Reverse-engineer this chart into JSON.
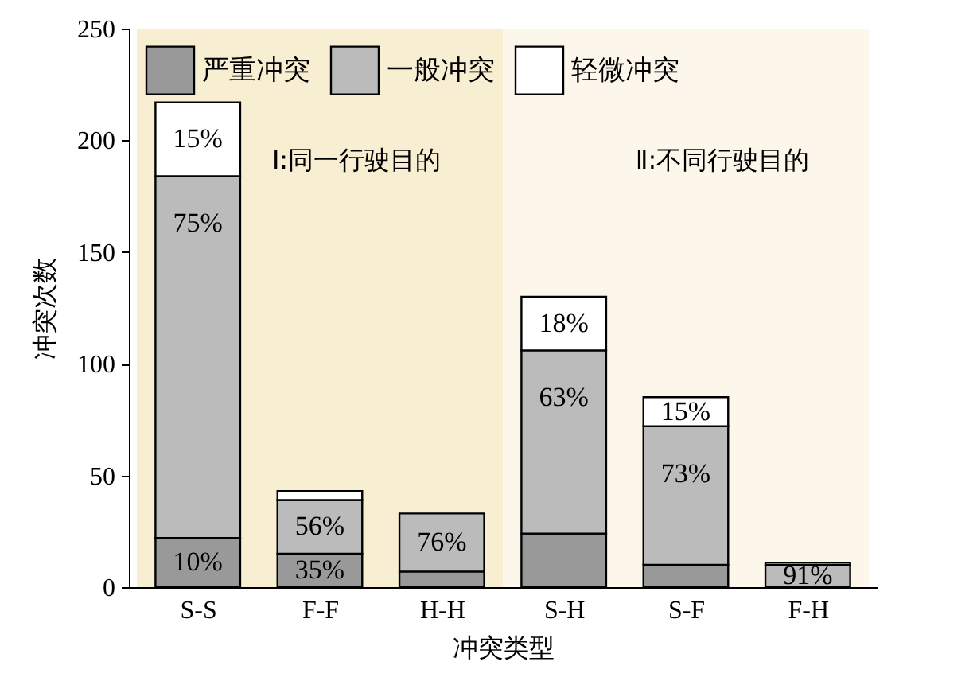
{
  "chart_data": {
    "type": "bar",
    "stacked": true,
    "xlabel": "冲突类型",
    "ylabel": "冲突次数",
    "categories": [
      "S-S",
      "F-F",
      "H-H",
      "S-H",
      "S-F",
      "F-H"
    ],
    "series": [
      {
        "name": "严重冲突",
        "color": "#999999",
        "values": [
          22,
          15,
          7,
          24,
          10,
          0
        ]
      },
      {
        "name": "一般冲突",
        "color": "#bbbbbb",
        "values": [
          162,
          24,
          26,
          82,
          62,
          10
        ]
      },
      {
        "name": "轻微冲突",
        "color": "#ffffff",
        "values": [
          33,
          4,
          null,
          24,
          13,
          1
        ]
      }
    ],
    "annotations": [
      {
        "text": "10%",
        "x": "S-S",
        "y": 22
      },
      {
        "text": "75%",
        "x": "S-S",
        "y": 184
      },
      {
        "text": "15%",
        "x": "S-S",
        "y": 217
      },
      {
        "text": "35%",
        "x": "F-F",
        "y": 15
      },
      {
        "text": "56%",
        "x": "F-F",
        "y": 39
      },
      {
        "text": "76%",
        "x": "H-H",
        "y": 33
      },
      {
        "text": "63%",
        "x": "S-H",
        "y": 106
      },
      {
        "text": "18%",
        "x": "S-H",
        "y": 130
      },
      {
        "text": "73%",
        "x": "S-F",
        "y": 72
      },
      {
        "text": "15%",
        "x": "S-F",
        "y": 85
      },
      {
        "text": "91%",
        "x": "F-H",
        "y": 10
      }
    ],
    "ylim": [
      0,
      250
    ],
    "yticks": [
      0,
      50,
      100,
      150,
      200,
      250
    ],
    "legend": "top",
    "bands": [
      {
        "axis": "x",
        "from": "S-S",
        "to": "H-H",
        "label": "Ⅰ:同一行驶目的",
        "color": "#f8eed2"
      },
      {
        "axis": "x",
        "from": "S-H",
        "to": "F-H",
        "label": "Ⅱ:不同行驶目的",
        "color": "#fcf7ea"
      }
    ]
  }
}
